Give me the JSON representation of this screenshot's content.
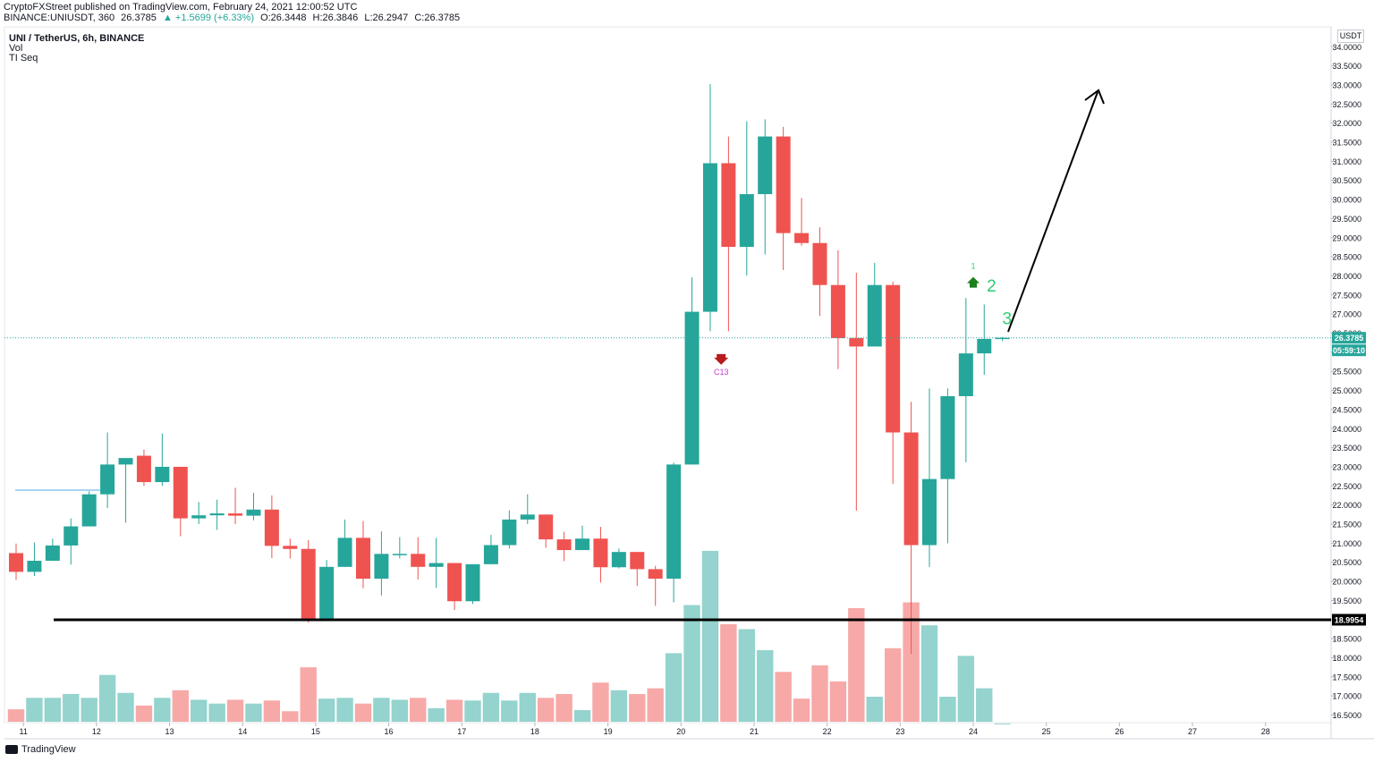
{
  "header": {
    "published": "CryptoFXStreet published on TradingView.com, February 24, 2021 12:00:52 UTC",
    "symbol_line": "BINANCE:UNIUSDT, 360",
    "last_price": "26.3785",
    "change": "▲ +1.5699 (+6.33%)",
    "open": "O:26.3448",
    "high": "H:26.3846",
    "low": "L:26.2947",
    "close": "C:26.3785"
  },
  "legend": {
    "title": "UNI / TetherUS, 6h, BINANCE",
    "vol": "Vol",
    "ti": "TI Seq"
  },
  "currency_label": "USDT",
  "price_badge": "26.3785",
  "countdown_badge": "05:59:10",
  "support_badge": "18.9954",
  "footer": {
    "brand": "TradingView"
  },
  "colors": {
    "up": "#26a69a",
    "down": "#ef5350",
    "vol_up": "#94d3ce",
    "vol_down": "#f7a9a7",
    "arrow_green": "#1b7f1b",
    "arrow_red": "#b71c1c",
    "label_green": "#2ecc71",
    "label_purple": "#c53ad6"
  },
  "chart_data": {
    "type": "candlestick",
    "ylim": [
      16.25,
      34.35
    ],
    "yticks": [
      "16.5000",
      "17.0000",
      "17.5000",
      "18.0000",
      "18.5000",
      "19.0000",
      "19.5000",
      "20.0000",
      "20.5000",
      "21.0000",
      "21.5000",
      "22.0000",
      "22.5000",
      "23.0000",
      "23.5000",
      "24.0000",
      "24.5000",
      "25.0000",
      "25.5000",
      "26.0000",
      "26.5000",
      "27.0000",
      "27.5000",
      "28.0000",
      "28.5000",
      "29.0000",
      "29.5000",
      "30.0000",
      "30.5000",
      "31.0000",
      "31.5000",
      "32.0000",
      "32.5000",
      "33.0000",
      "33.5000",
      "34.0000"
    ],
    "xticks": [
      {
        "label": "11",
        "i": 0.4
      },
      {
        "label": "12",
        "i": 4.4
      },
      {
        "label": "13",
        "i": 8.4
      },
      {
        "label": "14",
        "i": 12.4
      },
      {
        "label": "15",
        "i": 16.4
      },
      {
        "label": "16",
        "i": 20.4
      },
      {
        "label": "17",
        "i": 24.4
      },
      {
        "label": "18",
        "i": 28.4
      },
      {
        "label": "19",
        "i": 32.4
      },
      {
        "label": "20",
        "i": 36.4
      },
      {
        "label": "21",
        "i": 40.4
      },
      {
        "label": "22",
        "i": 44.4
      },
      {
        "label": "23",
        "i": 48.4
      },
      {
        "label": "24",
        "i": 52.4
      },
      {
        "label": "25",
        "i": 56.4
      },
      {
        "label": "26",
        "i": 60.4
      },
      {
        "label": "27",
        "i": 64.4
      },
      {
        "label": "28",
        "i": 68.4
      }
    ],
    "candles": [
      {
        "o": 20.74,
        "h": 20.99,
        "l": 20.04,
        "c": 20.25,
        "v": 16.65
      },
      {
        "o": 20.25,
        "h": 21.02,
        "l": 20.14,
        "c": 20.54,
        "v": 16.95
      },
      {
        "o": 20.54,
        "h": 21.12,
        "l": 20.54,
        "c": 20.94,
        "v": 16.95
      },
      {
        "o": 20.94,
        "h": 21.65,
        "l": 20.44,
        "c": 21.44,
        "v": 17.05
      },
      {
        "o": 21.44,
        "h": 22.36,
        "l": 21.44,
        "c": 22.28,
        "v": 16.95
      },
      {
        "o": 22.28,
        "h": 23.9,
        "l": 21.92,
        "c": 23.06,
        "v": 17.55
      },
      {
        "o": 23.06,
        "h": 23.23,
        "l": 21.54,
        "c": 23.23,
        "v": 17.08
      },
      {
        "o": 23.29,
        "h": 23.45,
        "l": 22.5,
        "c": 22.6,
        "v": 16.75
      },
      {
        "o": 22.6,
        "h": 23.87,
        "l": 22.5,
        "c": 23.0,
        "v": 16.95
      },
      {
        "o": 23.0,
        "h": 23.0,
        "l": 21.18,
        "c": 21.65,
        "v": 17.15
      },
      {
        "o": 21.65,
        "h": 22.08,
        "l": 21.5,
        "c": 21.73,
        "v": 16.9
      },
      {
        "o": 21.73,
        "h": 22.14,
        "l": 21.35,
        "c": 21.78,
        "v": 16.8
      },
      {
        "o": 21.78,
        "h": 22.45,
        "l": 21.5,
        "c": 21.72,
        "v": 16.9
      },
      {
        "o": 21.72,
        "h": 22.32,
        "l": 21.6,
        "c": 21.88,
        "v": 16.8
      },
      {
        "o": 21.88,
        "h": 22.25,
        "l": 20.61,
        "c": 20.93,
        "v": 16.88
      },
      {
        "o": 20.93,
        "h": 21.12,
        "l": 20.6,
        "c": 20.85,
        "v": 16.6
      },
      {
        "o": 20.85,
        "h": 21.08,
        "l": 18.92,
        "c": 19.03,
        "v": 17.75
      },
      {
        "o": 19.03,
        "h": 20.56,
        "l": 19.03,
        "c": 20.38,
        "v": 16.93
      },
      {
        "o": 20.38,
        "h": 21.62,
        "l": 20.38,
        "c": 21.14,
        "v": 16.95
      },
      {
        "o": 21.14,
        "h": 21.58,
        "l": 19.82,
        "c": 20.07,
        "v": 16.8
      },
      {
        "o": 20.07,
        "h": 21.31,
        "l": 19.63,
        "c": 20.72,
        "v": 16.95
      },
      {
        "o": 20.72,
        "h": 21.16,
        "l": 20.6,
        "c": 20.72,
        "v": 16.9
      },
      {
        "o": 20.72,
        "h": 21.16,
        "l": 20.05,
        "c": 20.38,
        "v": 16.95
      },
      {
        "o": 20.38,
        "h": 21.14,
        "l": 19.83,
        "c": 20.48,
        "v": 16.68
      },
      {
        "o": 20.48,
        "h": 20.48,
        "l": 19.25,
        "c": 19.48,
        "v": 16.9
      },
      {
        "o": 19.48,
        "h": 20.45,
        "l": 19.41,
        "c": 20.45,
        "v": 16.88
      },
      {
        "o": 20.45,
        "h": 21.22,
        "l": 20.45,
        "c": 20.95,
        "v": 17.08
      },
      {
        "o": 20.95,
        "h": 21.86,
        "l": 20.86,
        "c": 21.62,
        "v": 16.88
      },
      {
        "o": 21.62,
        "h": 22.28,
        "l": 21.5,
        "c": 21.75,
        "v": 17.08
      },
      {
        "o": 21.75,
        "h": 21.75,
        "l": 20.88,
        "c": 21.1,
        "v": 16.95
      },
      {
        "o": 21.1,
        "h": 21.3,
        "l": 20.53,
        "c": 20.82,
        "v": 17.05
      },
      {
        "o": 20.82,
        "h": 21.46,
        "l": 20.82,
        "c": 21.12,
        "v": 16.63
      },
      {
        "o": 21.12,
        "h": 21.43,
        "l": 19.97,
        "c": 20.37,
        "v": 17.35
      },
      {
        "o": 20.37,
        "h": 20.86,
        "l": 20.34,
        "c": 20.77,
        "v": 17.15
      },
      {
        "o": 20.77,
        "h": 20.77,
        "l": 19.88,
        "c": 20.32,
        "v": 17.05
      },
      {
        "o": 20.32,
        "h": 20.41,
        "l": 19.36,
        "c": 20.07,
        "v": 17.2
      },
      {
        "o": 20.07,
        "h": 23.11,
        "l": 19.45,
        "c": 23.06,
        "v": 18.12
      },
      {
        "o": 23.06,
        "h": 27.96,
        "l": 23.06,
        "c": 27.06,
        "v": 19.38
      },
      {
        "o": 27.06,
        "h": 33.02,
        "l": 26.55,
        "c": 30.95,
        "v": 20.8
      },
      {
        "o": 30.95,
        "h": 31.65,
        "l": 26.55,
        "c": 28.76,
        "v": 18.88
      },
      {
        "o": 28.76,
        "h": 32.05,
        "l": 28.01,
        "c": 30.14,
        "v": 18.75
      },
      {
        "o": 30.14,
        "h": 32.1,
        "l": 28.56,
        "c": 31.65,
        "v": 18.2
      },
      {
        "o": 31.65,
        "h": 31.9,
        "l": 28.15,
        "c": 29.12,
        "v": 17.63
      },
      {
        "o": 29.12,
        "h": 30.04,
        "l": 28.79,
        "c": 28.86,
        "v": 16.93
      },
      {
        "o": 28.86,
        "h": 29.27,
        "l": 26.95,
        "c": 27.76,
        "v": 17.8
      },
      {
        "o": 27.76,
        "h": 28.67,
        "l": 25.56,
        "c": 26.37,
        "v": 17.38
      },
      {
        "o": 26.37,
        "h": 28.08,
        "l": 21.85,
        "c": 26.15,
        "v": 19.3
      },
      {
        "o": 26.15,
        "h": 28.34,
        "l": 26.15,
        "c": 27.76,
        "v": 16.98
      },
      {
        "o": 27.76,
        "h": 27.85,
        "l": 22.55,
        "c": 23.9,
        "v": 18.25
      },
      {
        "o": 23.9,
        "h": 24.7,
        "l": 18.1,
        "c": 20.95,
        "v": 19.45
      },
      {
        "o": 20.95,
        "h": 25.05,
        "l": 20.38,
        "c": 22.68,
        "v": 18.85
      },
      {
        "o": 22.68,
        "h": 25.05,
        "l": 21.0,
        "c": 24.85,
        "v": 16.98
      },
      {
        "o": 24.85,
        "h": 27.42,
        "l": 23.12,
        "c": 25.97,
        "v": 18.05
      },
      {
        "o": 25.97,
        "h": 27.25,
        "l": 25.41,
        "c": 26.35,
        "v": 17.2
      },
      {
        "o": 26.35,
        "h": 26.4,
        "l": 26.29,
        "c": 26.38,
        "v": 16.28
      }
    ],
    "support_level": 18.9954,
    "current_price": 26.3785,
    "annotations": [
      {
        "text": "C13",
        "i": 38.6,
        "y": 25.6
      },
      {
        "text": "1",
        "i": 52.4,
        "y": 28.3
      },
      {
        "text": "2",
        "i": 53.4,
        "y": 27.8
      },
      {
        "text": "3",
        "i": 54.4,
        "y": 26.9
      }
    ]
  }
}
